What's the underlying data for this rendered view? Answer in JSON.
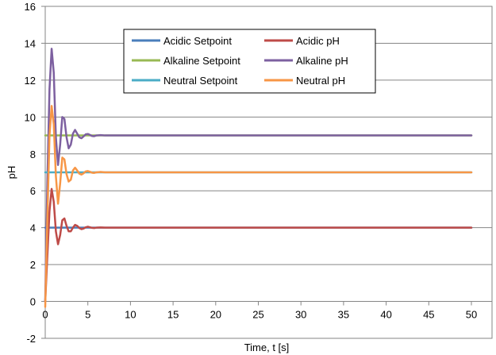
{
  "chart_data": {
    "type": "line",
    "title": "",
    "xlabel": "Time, t [s]",
    "ylabel": "pH",
    "xlim": [
      0,
      50
    ],
    "ylim": [
      -2,
      16
    ],
    "x_ticks": [
      0,
      5,
      10,
      15,
      20,
      25,
      30,
      35,
      40,
      45,
      50
    ],
    "y_ticks": [
      -2,
      0,
      2,
      4,
      6,
      8,
      10,
      12,
      14,
      16
    ],
    "x_tick_labels": [
      "0",
      "5",
      "10",
      "15",
      "20",
      "25",
      "30",
      "35",
      "40",
      "45",
      "50"
    ],
    "y_tick_labels": [
      "-2",
      "0",
      "2",
      "4",
      "6",
      "8",
      "10",
      "12",
      "14",
      "16"
    ],
    "grid": "horizontal",
    "legend_position": "top-center",
    "series": [
      {
        "name": "Acidic Setpoint",
        "color": "#4a7ebb",
        "x": [
          0,
          50
        ],
        "y": [
          4,
          4
        ]
      },
      {
        "name": "Acidic pH",
        "color": "#be4b48",
        "x": [
          0,
          0.25,
          0.5,
          0.75,
          1.0,
          1.25,
          1.5,
          1.75,
          2.0,
          2.25,
          2.5,
          2.75,
          3.0,
          3.25,
          3.5,
          3.75,
          4.0,
          4.25,
          4.5,
          4.75,
          5.0,
          5.25,
          5.5,
          5.75,
          6.0,
          6.5,
          7.0,
          7.5,
          8.0,
          9.0,
          10,
          15,
          20,
          30,
          40,
          50
        ],
        "y": [
          0,
          2.5,
          4.9,
          6.1,
          5.4,
          3.8,
          3.1,
          3.6,
          4.4,
          4.5,
          4.1,
          3.8,
          3.8,
          4.0,
          4.15,
          4.1,
          3.98,
          3.92,
          3.95,
          4.02,
          4.05,
          4.02,
          3.99,
          3.98,
          4.0,
          4.01,
          4.0,
          4.0,
          4.0,
          4.0,
          4.0,
          4.0,
          4.0,
          4.0,
          4.0,
          4.0
        ]
      },
      {
        "name": "Alkaline Setpoint",
        "color": "#98b954",
        "x": [
          0,
          50
        ],
        "y": [
          9,
          9
        ]
      },
      {
        "name": "Alkaline pH",
        "color": "#7d60a0",
        "x": [
          0,
          0.25,
          0.5,
          0.75,
          1.0,
          1.25,
          1.5,
          1.75,
          2.0,
          2.25,
          2.5,
          2.75,
          3.0,
          3.25,
          3.5,
          3.75,
          4.0,
          4.25,
          4.5,
          4.75,
          5.0,
          5.25,
          5.5,
          5.75,
          6.0,
          6.5,
          7.0,
          7.5,
          8.0,
          9.0,
          10,
          15,
          20,
          30,
          40,
          50
        ],
        "y": [
          0,
          6.5,
          11.5,
          13.7,
          12.4,
          8.9,
          7.4,
          8.5,
          10.0,
          9.9,
          8.9,
          8.3,
          8.5,
          9.1,
          9.3,
          9.1,
          8.9,
          8.85,
          8.95,
          9.06,
          9.08,
          9.03,
          8.97,
          8.96,
          9.0,
          9.02,
          9.0,
          9.0,
          9.0,
          9.0,
          9.0,
          9.0,
          9.0,
          9.0,
          9.0,
          9.0
        ]
      },
      {
        "name": "Neutral Setpoint",
        "color": "#4bacc6",
        "x": [
          0,
          50
        ],
        "y": [
          7,
          7
        ]
      },
      {
        "name": "Neutral pH",
        "color": "#f79646",
        "x": [
          0,
          0.25,
          0.5,
          0.75,
          1.0,
          1.25,
          1.5,
          1.75,
          2.0,
          2.25,
          2.5,
          2.75,
          3.0,
          3.25,
          3.5,
          3.75,
          4.0,
          4.25,
          4.5,
          4.75,
          5.0,
          5.25,
          5.5,
          5.75,
          6.0,
          6.5,
          7.0,
          7.5,
          8.0,
          9.0,
          10,
          15,
          20,
          30,
          40,
          50
        ],
        "y": [
          -0.3,
          4.5,
          9.0,
          10.6,
          9.6,
          6.8,
          5.3,
          6.4,
          7.8,
          7.7,
          6.9,
          6.5,
          6.6,
          7.1,
          7.25,
          7.1,
          6.93,
          6.88,
          6.95,
          7.05,
          7.07,
          7.03,
          6.98,
          6.97,
          7.0,
          7.02,
          7.0,
          7.0,
          7.0,
          7.0,
          7.0,
          7.0,
          7.0,
          7.0,
          7.0,
          7.0
        ]
      }
    ]
  }
}
